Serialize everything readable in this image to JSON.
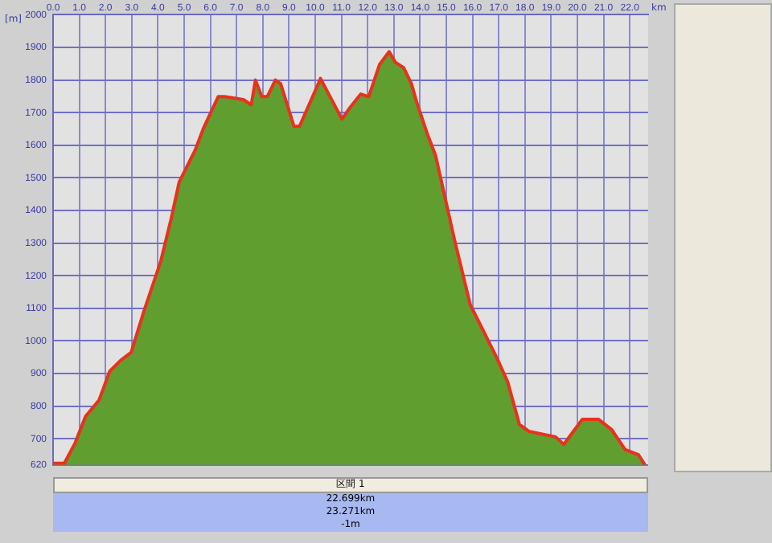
{
  "chart_data": {
    "type": "area",
    "xlabel": "km",
    "ylabel": "[m]",
    "x": [
      0,
      0.43,
      0.84,
      1.24,
      1.75,
      2.16,
      2.57,
      2.98,
      3.48,
      4.1,
      4.5,
      4.81,
      5.42,
      5.73,
      6.3,
      6.54,
      7.26,
      7.56,
      7.72,
      7.96,
      8.17,
      8.48,
      8.68,
      9.19,
      9.4,
      10.17,
      10.2,
      11.02,
      11.33,
      11.74,
      12.04,
      12.45,
      12.82,
      13.06,
      13.37,
      13.67,
      13.87,
      14.28,
      14.59,
      15.3,
      15.91,
      16.93,
      17.34,
      17.79,
      18.15,
      19.17,
      19.48,
      20.19,
      20.8,
      21.31,
      21.82,
      22.33,
      22.58
    ],
    "series": [
      {
        "color": "#5f9e2f",
        "values": [
          625,
          625,
          687,
          769,
          818,
          907,
          940,
          965,
          1095,
          1242,
          1373,
          1487,
          1585,
          1651,
          1749,
          1749,
          1740,
          1724,
          1800,
          1749,
          1749,
          1800,
          1789,
          1658,
          1658,
          1798,
          1805,
          1680,
          1716,
          1757,
          1749,
          1847,
          1887,
          1854,
          1838,
          1789,
          1732,
          1634,
          1569,
          1315,
          1112,
          948,
          875,
          744,
          723,
          706,
          683,
          760,
          760,
          728,
          667,
          651,
          620
        ]
      }
    ],
    "xlim": [
      0,
      22.7
    ],
    "xticks": [
      {
        "value": 0,
        "label": "0.0"
      },
      {
        "value": 1,
        "label": "1.0"
      },
      {
        "value": 2,
        "label": "2.0"
      },
      {
        "value": 3,
        "label": "3.0"
      },
      {
        "value": 4,
        "label": "4.0"
      },
      {
        "value": 5,
        "label": "5.0"
      },
      {
        "value": 6,
        "label": "6.0"
      },
      {
        "value": 7,
        "label": "7.0"
      },
      {
        "value": 8,
        "label": "8.0"
      },
      {
        "value": 9,
        "label": "9.0"
      },
      {
        "value": 10,
        "label": "10.0"
      },
      {
        "value": 11,
        "label": "11.0"
      },
      {
        "value": 12,
        "label": "12.0"
      },
      {
        "value": 13,
        "label": "13.0"
      },
      {
        "value": 14,
        "label": "14.0"
      },
      {
        "value": 15,
        "label": "15.0"
      },
      {
        "value": 16,
        "label": "16.0"
      },
      {
        "value": 17,
        "label": "17.0"
      },
      {
        "value": 18,
        "label": "18.0"
      },
      {
        "value": 19,
        "label": "19.0"
      },
      {
        "value": 20,
        "label": "20.0"
      },
      {
        "value": 21,
        "label": "21.0"
      },
      {
        "value": 22,
        "label": "22.0"
      }
    ],
    "ylim": [
      620,
      2000
    ],
    "yticks": [
      620,
      700,
      800,
      900,
      1000,
      1100,
      1200,
      1300,
      1400,
      1500,
      1600,
      1700,
      1800,
      1900,
      2000
    ],
    "grid": true,
    "marker": "none",
    "line_style": "solid",
    "annotations": [
      "区間 1",
      "22.699km",
      "23.271km",
      "-1m"
    ]
  }
}
